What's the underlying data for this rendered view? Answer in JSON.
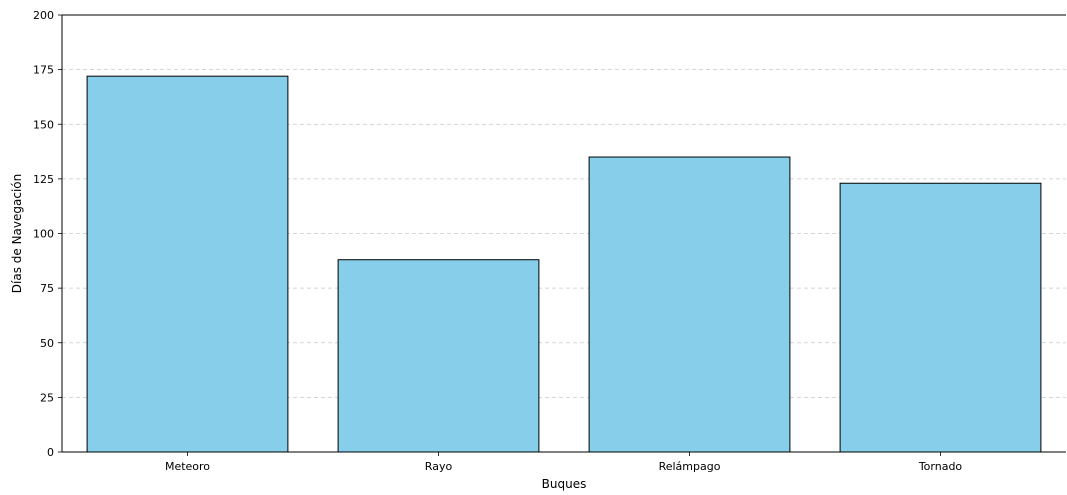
{
  "chart_data": {
    "type": "bar",
    "title": "",
    "xlabel": "Buques",
    "ylabel": "Días de Navegación",
    "categories": [
      "Meteoro",
      "Rayo",
      "Relámpago",
      "Tornado"
    ],
    "values": [
      172,
      88,
      135,
      123
    ],
    "ylim": [
      0,
      200
    ],
    "yticks": [
      "0",
      "25",
      "50",
      "75",
      "100",
      "125",
      "150",
      "175",
      "200"
    ],
    "grid": "horizontal dashed",
    "legend": "none",
    "colors": {
      "bar_fill": "#87CEEB",
      "bar_edge": "#000000",
      "grid": "#c8c8c8",
      "axis": "#000000"
    }
  }
}
